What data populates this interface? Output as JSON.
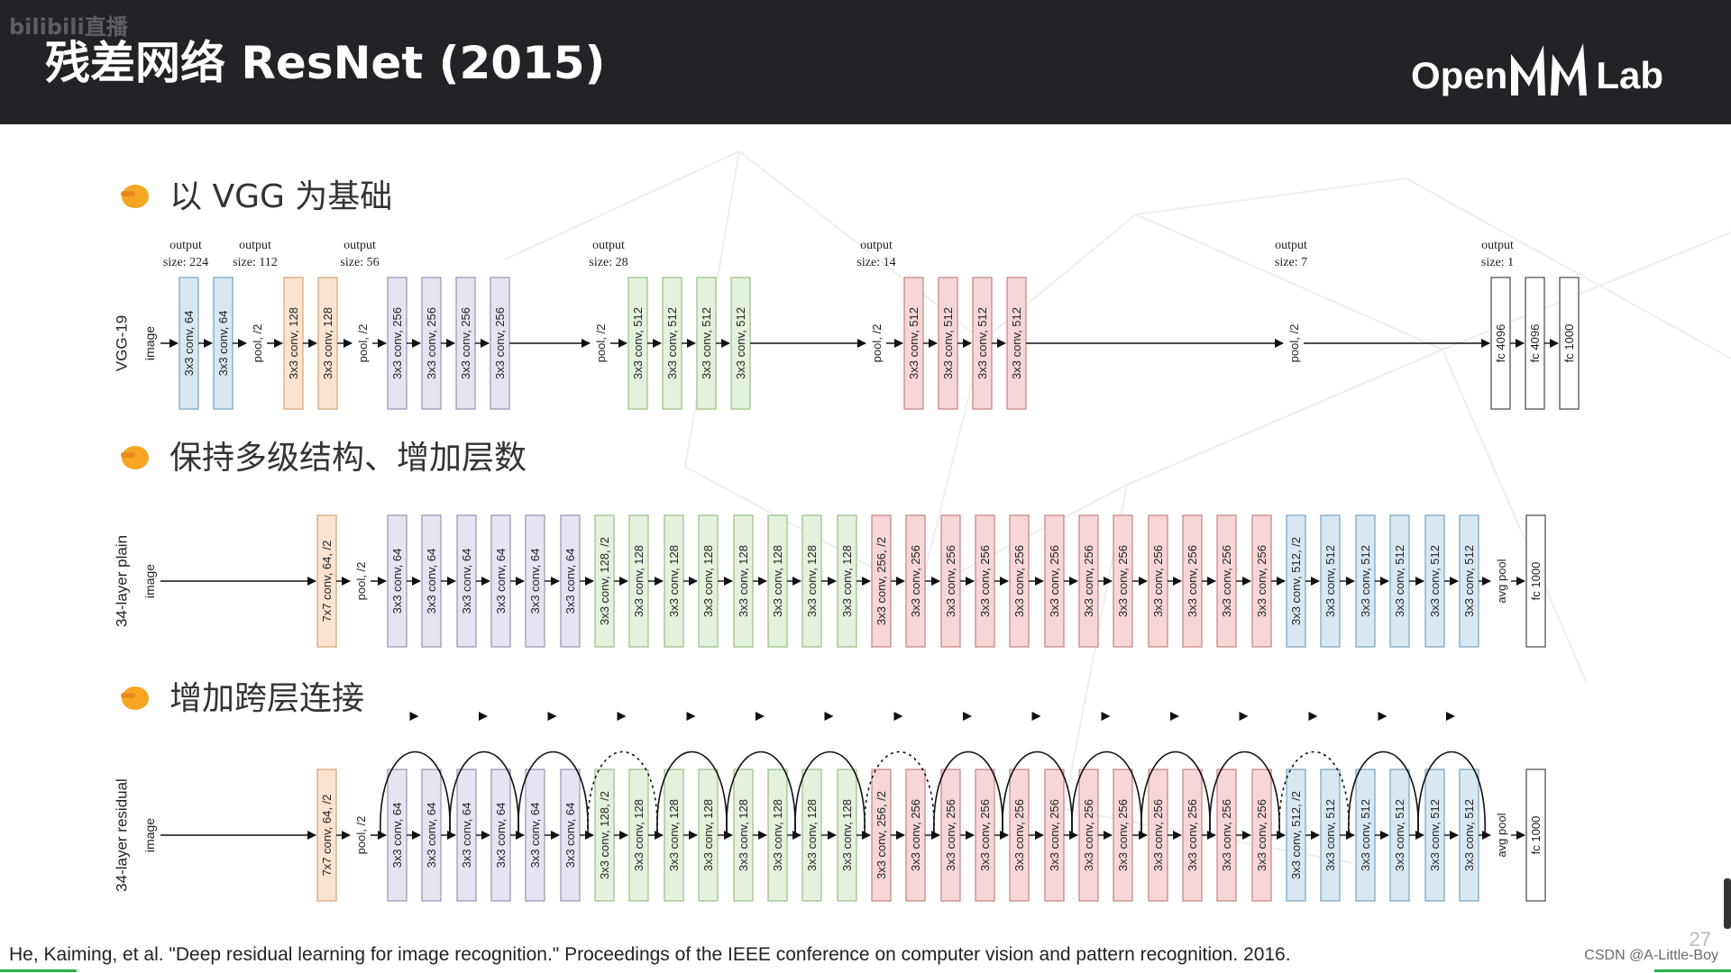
{
  "watermark": "bilibili直播",
  "title": "残差网络 ResNet (2015)",
  "logo": {
    "left": "Open",
    "right": "Lab"
  },
  "bullets": [
    "以 VGG 为基础",
    "保持多级结构、增加层数",
    "增加跨层连接"
  ],
  "citation": "He, Kaiming, et al. \"Deep residual learning for image recognition.\" Proceedings of the IEEE conference on computer vision and pattern recognition. 2016.",
  "credit": "CSDN @A-Little-Boy",
  "page_number": "27",
  "colors": {
    "blue": "#d7e8f2",
    "orange": "#fbe3d0",
    "lavender": "#e6e4f1",
    "green": "#e4f1dc",
    "pink": "#f6d6d6",
    "white": "#ffffff",
    "topbar": "#212326"
  },
  "icons": [
    "pointing-hand-icon"
  ],
  "vgg": {
    "row_label": "VGG-19",
    "input_label": "image",
    "blocks": [
      {
        "label": "3x3 conv, 64",
        "color": "blue"
      },
      {
        "label": "3x3 conv, 64",
        "color": "blue"
      },
      {
        "label": "pool, /2",
        "color": "none"
      },
      {
        "label": "3x3 conv, 128",
        "color": "orange"
      },
      {
        "label": "3x3 conv, 128",
        "color": "orange"
      },
      {
        "label": "pool, /2",
        "color": "none"
      },
      {
        "label": "3x3 conv, 256",
        "color": "lavender"
      },
      {
        "label": "3x3 conv, 256",
        "color": "lavender"
      },
      {
        "label": "3x3 conv, 256",
        "color": "lavender"
      },
      {
        "label": "3x3 conv, 256",
        "color": "lavender"
      },
      {
        "label": "pool, /2",
        "color": "none"
      },
      {
        "label": "3x3 conv, 512",
        "color": "green"
      },
      {
        "label": "3x3 conv, 512",
        "color": "green"
      },
      {
        "label": "3x3 conv, 512",
        "color": "green"
      },
      {
        "label": "3x3 conv, 512",
        "color": "green"
      },
      {
        "label": "pool, /2",
        "color": "none"
      },
      {
        "label": "3x3 conv, 512",
        "color": "pink"
      },
      {
        "label": "3x3 conv, 512",
        "color": "pink"
      },
      {
        "label": "3x3 conv, 512",
        "color": "pink"
      },
      {
        "label": "3x3 conv, 512",
        "color": "pink"
      },
      {
        "label": "pool, /2",
        "color": "none"
      },
      {
        "label": "fc 4096",
        "color": "white"
      },
      {
        "label": "fc 4096",
        "color": "white"
      },
      {
        "label": "fc 1000",
        "color": "white"
      }
    ],
    "output_sizes": [
      {
        "line1": "output",
        "line2": "size: 224"
      },
      {
        "line1": "output",
        "line2": "size: 112"
      },
      {
        "line1": "output",
        "line2": "size: 56"
      },
      {
        "line1": "output",
        "line2": "size: 28"
      },
      {
        "line1": "output",
        "line2": "size: 14"
      },
      {
        "line1": "output",
        "line2": "size: 7"
      },
      {
        "line1": "output",
        "line2": "size: 1"
      }
    ]
  },
  "plain": {
    "row_label": "34-layer plain",
    "input_label": "image",
    "blocks": [
      {
        "label": "7x7 conv, 64, /2",
        "color": "orange"
      },
      {
        "label": "pool, /2",
        "color": "none"
      },
      {
        "label": "3x3 conv, 64",
        "color": "lavender"
      },
      {
        "label": "3x3 conv, 64",
        "color": "lavender"
      },
      {
        "label": "3x3 conv, 64",
        "color": "lavender"
      },
      {
        "label": "3x3 conv, 64",
        "color": "lavender"
      },
      {
        "label": "3x3 conv, 64",
        "color": "lavender"
      },
      {
        "label": "3x3 conv, 64",
        "color": "lavender"
      },
      {
        "label": "3x3 conv, 128, /2",
        "color": "green"
      },
      {
        "label": "3x3 conv, 128",
        "color": "green"
      },
      {
        "label": "3x3 conv, 128",
        "color": "green"
      },
      {
        "label": "3x3 conv, 128",
        "color": "green"
      },
      {
        "label": "3x3 conv, 128",
        "color": "green"
      },
      {
        "label": "3x3 conv, 128",
        "color": "green"
      },
      {
        "label": "3x3 conv, 128",
        "color": "green"
      },
      {
        "label": "3x3 conv, 128",
        "color": "green"
      },
      {
        "label": "3x3 conv, 256, /2",
        "color": "pink"
      },
      {
        "label": "3x3 conv, 256",
        "color": "pink"
      },
      {
        "label": "3x3 conv, 256",
        "color": "pink"
      },
      {
        "label": "3x3 conv, 256",
        "color": "pink"
      },
      {
        "label": "3x3 conv, 256",
        "color": "pink"
      },
      {
        "label": "3x3 conv, 256",
        "color": "pink"
      },
      {
        "label": "3x3 conv, 256",
        "color": "pink"
      },
      {
        "label": "3x3 conv, 256",
        "color": "pink"
      },
      {
        "label": "3x3 conv, 256",
        "color": "pink"
      },
      {
        "label": "3x3 conv, 256",
        "color": "pink"
      },
      {
        "label": "3x3 conv, 256",
        "color": "pink"
      },
      {
        "label": "3x3 conv, 256",
        "color": "pink"
      },
      {
        "label": "3x3 conv, 512, /2",
        "color": "blue"
      },
      {
        "label": "3x3 conv, 512",
        "color": "blue"
      },
      {
        "label": "3x3 conv, 512",
        "color": "blue"
      },
      {
        "label": "3x3 conv, 512",
        "color": "blue"
      },
      {
        "label": "3x3 conv, 512",
        "color": "blue"
      },
      {
        "label": "3x3 conv, 512",
        "color": "blue"
      },
      {
        "label": "avg pool",
        "color": "none"
      },
      {
        "label": "fc 1000",
        "color": "white"
      }
    ]
  },
  "residual": {
    "row_label": "34-layer residual",
    "input_label": "image",
    "shortcuts": [
      "solid",
      "solid",
      "solid",
      "dotted",
      "solid",
      "solid",
      "solid",
      "dotted",
      "solid",
      "solid",
      "solid",
      "solid",
      "solid",
      "dotted",
      "solid",
      "solid"
    ],
    "blocks": [
      {
        "label": "7x7 conv, 64, /2",
        "color": "orange"
      },
      {
        "label": "pool, /2",
        "color": "none"
      },
      {
        "label": "3x3 conv, 64",
        "color": "lavender"
      },
      {
        "label": "3x3 conv, 64",
        "color": "lavender"
      },
      {
        "label": "3x3 conv, 64",
        "color": "lavender"
      },
      {
        "label": "3x3 conv, 64",
        "color": "lavender"
      },
      {
        "label": "3x3 conv, 64",
        "color": "lavender"
      },
      {
        "label": "3x3 conv, 64",
        "color": "lavender"
      },
      {
        "label": "3x3 conv, 128, /2",
        "color": "green"
      },
      {
        "label": "3x3 conv, 128",
        "color": "green"
      },
      {
        "label": "3x3 conv, 128",
        "color": "green"
      },
      {
        "label": "3x3 conv, 128",
        "color": "green"
      },
      {
        "label": "3x3 conv, 128",
        "color": "green"
      },
      {
        "label": "3x3 conv, 128",
        "color": "green"
      },
      {
        "label": "3x3 conv, 128",
        "color": "green"
      },
      {
        "label": "3x3 conv, 128",
        "color": "green"
      },
      {
        "label": "3x3 conv, 256, /2",
        "color": "pink"
      },
      {
        "label": "3x3 conv, 256",
        "color": "pink"
      },
      {
        "label": "3x3 conv, 256",
        "color": "pink"
      },
      {
        "label": "3x3 conv, 256",
        "color": "pink"
      },
      {
        "label": "3x3 conv, 256",
        "color": "pink"
      },
      {
        "label": "3x3 conv, 256",
        "color": "pink"
      },
      {
        "label": "3x3 conv, 256",
        "color": "pink"
      },
      {
        "label": "3x3 conv, 256",
        "color": "pink"
      },
      {
        "label": "3x3 conv, 256",
        "color": "pink"
      },
      {
        "label": "3x3 conv, 256",
        "color": "pink"
      },
      {
        "label": "3x3 conv, 256",
        "color": "pink"
      },
      {
        "label": "3x3 conv, 256",
        "color": "pink"
      },
      {
        "label": "3x3 conv, 512, /2",
        "color": "blue"
      },
      {
        "label": "3x3 conv, 512",
        "color": "blue"
      },
      {
        "label": "3x3 conv, 512",
        "color": "blue"
      },
      {
        "label": "3x3 conv, 512",
        "color": "blue"
      },
      {
        "label": "3x3 conv, 512",
        "color": "blue"
      },
      {
        "label": "3x3 conv, 512",
        "color": "blue"
      },
      {
        "label": "avg pool",
        "color": "none"
      },
      {
        "label": "fc 1000",
        "color": "white"
      }
    ]
  }
}
